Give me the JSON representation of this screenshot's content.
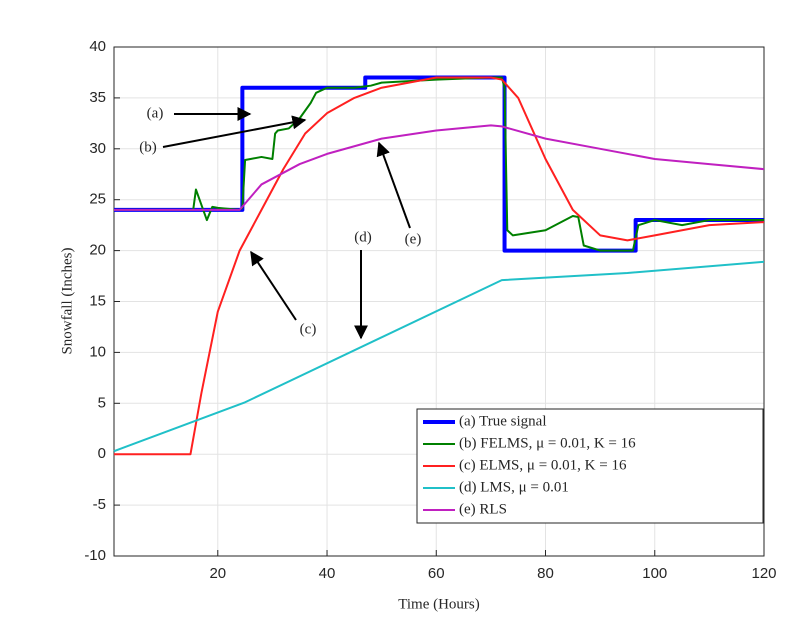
{
  "chart_data": {
    "type": "line",
    "x_label": "Time (Hours)",
    "y_label": "Snowfall (Inches)",
    "xlim": [
      1,
      120
    ],
    "xticks": [
      20,
      40,
      60,
      80,
      100,
      120
    ],
    "ylim": [
      -10,
      40
    ],
    "yticks": [
      -10,
      -5,
      0,
      5,
      10,
      15,
      20,
      25,
      30,
      35,
      40
    ],
    "grid": true,
    "legend": "lower right",
    "series": [
      {
        "name": "(a) True signal",
        "color": "#0000ff",
        "width": 4,
        "x": [
          1,
          24.5,
          24.5,
          47,
          47,
          72.5,
          72.5,
          96.5,
          96.5,
          120
        ],
        "values": [
          24,
          24,
          36,
          36,
          37,
          37,
          20,
          20,
          23,
          23
        ]
      },
      {
        "name": "(b) FELMS, μ = 0.01, K = 16",
        "color": "#008000",
        "width": 2,
        "x": [
          1,
          15.5,
          16,
          17,
          18,
          19,
          20,
          24,
          24.5,
          25,
          26,
          28,
          30,
          30.5,
          31,
          33,
          35,
          37,
          38,
          40,
          45,
          48,
          50,
          60,
          70,
          72,
          72.5,
          73,
          74,
          80,
          85,
          86,
          87,
          90,
          95,
          96,
          97,
          100,
          105,
          110,
          120
        ],
        "values": [
          24,
          24,
          26,
          24.5,
          23,
          24.3,
          24.2,
          24,
          24.2,
          28.9,
          29,
          29.2,
          29,
          31.5,
          31.8,
          32,
          33,
          34.5,
          35.5,
          36,
          36,
          36.2,
          36.5,
          36.8,
          37,
          37,
          36,
          22,
          21.5,
          22,
          23.4,
          23.3,
          20.5,
          20,
          20,
          20,
          22.5,
          23,
          22.5,
          23,
          23
        ]
      },
      {
        "name": "(c) ELMS, μ = 0.01, K = 16",
        "color": "#ff2020",
        "width": 2,
        "x": [
          1,
          15,
          17,
          20,
          24,
          28,
          32,
          36,
          40,
          45,
          50,
          60,
          65,
          70,
          72,
          75,
          80,
          85,
          90,
          95,
          100,
          110,
          120
        ],
        "values": [
          0,
          0,
          6,
          14,
          20,
          24,
          28,
          31.5,
          33.5,
          35,
          36,
          37,
          37,
          37,
          36.8,
          35,
          29,
          24,
          21.5,
          21,
          21.5,
          22.5,
          22.8
        ]
      },
      {
        "name": "(d) LMS, μ = 0.01",
        "color": "#20c0c8",
        "width": 2,
        "x": [
          1,
          25,
          72,
          95,
          120
        ],
        "values": [
          0.3,
          5.1,
          17.1,
          17.8,
          18.9
        ]
      },
      {
        "name": "(e) RLS",
        "color": "#c020c0",
        "width": 2,
        "x": [
          1,
          24,
          28,
          35,
          40,
          50,
          60,
          70,
          72,
          80,
          90,
          100,
          110,
          120
        ],
        "values": [
          24,
          24,
          26.5,
          28.5,
          29.5,
          31,
          31.8,
          32.3,
          32.2,
          31,
          30,
          29,
          28.5,
          28
        ]
      }
    ],
    "annotations": [
      "(a)",
      "(b)",
      "(c)",
      "(d)",
      "(e)"
    ]
  }
}
